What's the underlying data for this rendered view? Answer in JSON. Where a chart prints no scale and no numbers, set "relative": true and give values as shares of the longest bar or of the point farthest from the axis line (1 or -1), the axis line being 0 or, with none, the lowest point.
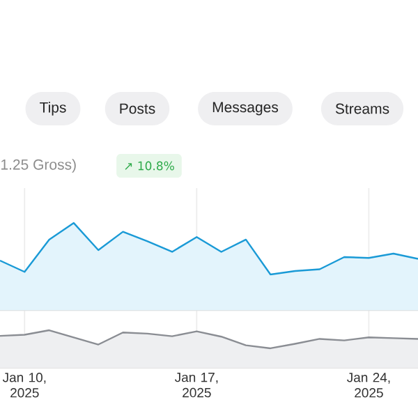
{
  "chart_data": [
    {
      "type": "area",
      "relative": true,
      "annotations": [
        "Tips",
        "Posts",
        "Messages",
        "Streams",
        "1.25 Gross)",
        "↗ 10.8%"
      ],
      "categories": [
        null,
        null,
        null,
        null,
        null,
        null,
        null,
        null,
        null,
        null,
        null,
        null,
        null,
        null,
        null,
        null,
        null,
        null
      ],
      "series": [
        {
          "color": "#1a9ad6",
          "values": [
            0.57,
            0.44,
            0.81,
            1,
            0.69,
            0.9,
            0.79,
            0.67,
            0.84,
            0.67,
            0.81,
            0.41,
            0.45,
            0.47,
            0.61,
            0.6,
            0.65,
            0.59
          ]
        }
      ]
    },
    {
      "type": "area",
      "relative": true,
      "grid": "x",
      "x": [
        "2025-01-09",
        "2025-01-10",
        "2025-01-11",
        "2025-01-12",
        "2025-01-13",
        "2025-01-14",
        "2025-01-15",
        "2025-01-16",
        "2025-01-17",
        "2025-01-18",
        "2025-01-19",
        "2025-01-20",
        "2025-01-21",
        "2025-01-22",
        "2025-01-23",
        "2025-01-24",
        "2025-01-25",
        "2025-01-26"
      ],
      "xlim": [
        "2025-01-09",
        "2025-01-26"
      ],
      "xticks": [
        {
          "value": "2025-01-10",
          "label": "Jan 10, 2025"
        },
        {
          "value": "2025-01-17",
          "label": "Jan 17, 2025"
        },
        {
          "value": "2025-01-24",
          "label": "Jan 24, 2025"
        }
      ],
      "series": [
        {
          "color": "#8a8d93",
          "values": [
            0.85,
            0.88,
            1,
            0.81,
            0.62,
            0.94,
            0.91,
            0.84,
            0.97,
            0.83,
            0.6,
            0.52,
            0.64,
            0.77,
            0.73,
            0.81,
            0.79,
            0.77
          ]
        }
      ]
    }
  ]
}
